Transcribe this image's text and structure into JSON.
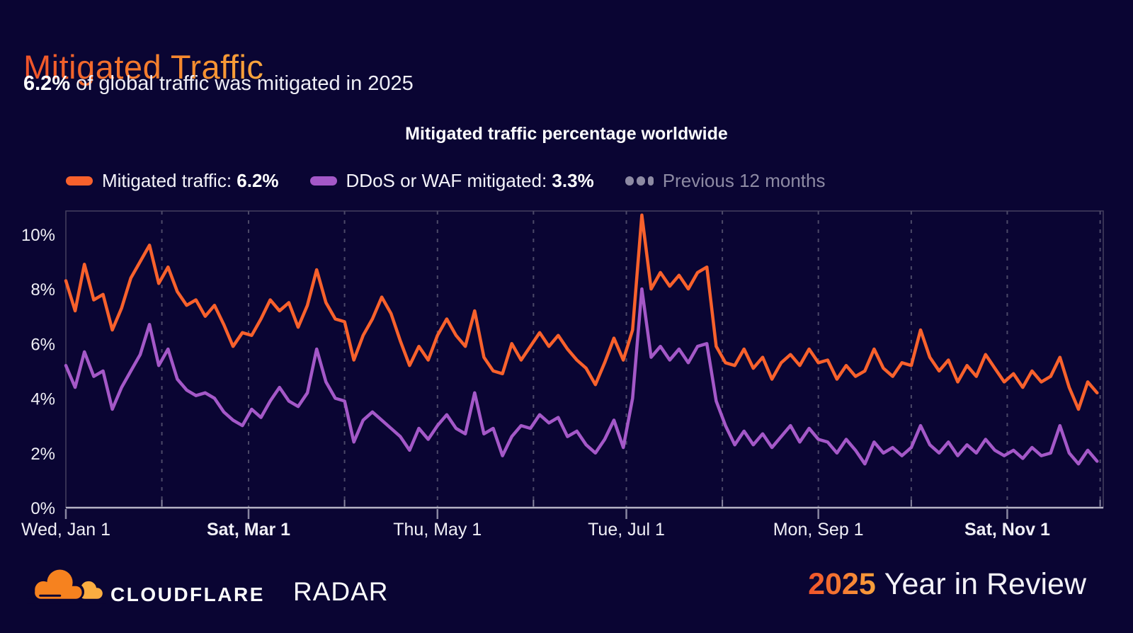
{
  "page": {
    "background": "#0a0533"
  },
  "header": {
    "title": "Mitigated Traffic",
    "subtitle_value": "6.2%",
    "subtitle_rest": " of global traffic was mitigated in 2025"
  },
  "chart": {
    "title": "Mitigated traffic percentage worldwide",
    "legend": [
      {
        "label": "Mitigated traffic: ",
        "value": "6.2%",
        "color": "#f8612c",
        "muted": false
      },
      {
        "label": "DDoS or WAF mitigated: ",
        "value": "3.3%",
        "color": "#a458c8",
        "muted": false
      },
      {
        "label": "Previous 12 months",
        "value": "",
        "color": "#8d8aa3",
        "muted": true
      }
    ],
    "colors": {
      "gridline": "#4c4968",
      "plot_border": "#44405f",
      "axis_line": "#b6b4c6",
      "tick": "#8886a0",
      "label": "#f0eff6"
    }
  },
  "chart_data": {
    "type": "line",
    "title": "Mitigated traffic percentage worldwide",
    "x_unit": "day of 2025",
    "x_start_day": 0,
    "x_step_days": 3,
    "x_domain_days": [
      0,
      335
    ],
    "ylim": [
      0,
      10.85
    ],
    "ytick_values": [
      0,
      2,
      4,
      6,
      8,
      10
    ],
    "ytick_labels": [
      "0%",
      "2%",
      "4%",
      "6%",
      "8%",
      "10%"
    ],
    "x_axis_labels": [
      {
        "label": "Wed, Jan 1",
        "day": 0,
        "bold": false
      },
      {
        "label": "Sat, Mar 1",
        "day": 59,
        "bold": true
      },
      {
        "label": "Thu, May 1",
        "day": 120,
        "bold": false
      },
      {
        "label": "Tue, Jul 1",
        "day": 181,
        "bold": false
      },
      {
        "label": "Mon, Sep 1",
        "day": 243,
        "bold": false
      },
      {
        "label": "Sat, Nov 1",
        "day": 304,
        "bold": true
      }
    ],
    "month_gridline_days": [
      31,
      59,
      90,
      120,
      151,
      181,
      212,
      243,
      273,
      304,
      334
    ],
    "minor_tick_days": [
      31,
      90,
      151,
      212,
      273,
      334
    ],
    "grid": "vertical-dashed",
    "legend_position": "top-left",
    "series": [
      {
        "name": "DDoS or WAF mitigated",
        "current_value": "3.3%",
        "color": "#a458c8",
        "unit": "%",
        "values": [
          5.2,
          4.4,
          5.7,
          4.8,
          5.0,
          3.6,
          4.4,
          5.0,
          5.6,
          6.7,
          5.2,
          5.8,
          4.7,
          4.3,
          4.1,
          4.2,
          4.0,
          3.5,
          3.2,
          3.0,
          3.6,
          3.3,
          3.9,
          4.4,
          3.9,
          3.7,
          4.2,
          5.8,
          4.6,
          4.0,
          3.9,
          2.4,
          3.2,
          3.5,
          3.2,
          2.9,
          2.6,
          2.1,
          2.9,
          2.5,
          3.0,
          3.4,
          2.9,
          2.7,
          4.2,
          2.7,
          2.9,
          1.9,
          2.6,
          3.0,
          2.9,
          3.4,
          3.1,
          3.3,
          2.6,
          2.8,
          2.3,
          2.0,
          2.5,
          3.2,
          2.2,
          4.0,
          8.0,
          5.5,
          5.9,
          5.4,
          5.8,
          5.3,
          5.9,
          6.0,
          3.9,
          3.0,
          2.3,
          2.8,
          2.3,
          2.7,
          2.2,
          2.6,
          3.0,
          2.4,
          2.9,
          2.5,
          2.4,
          2.0,
          2.5,
          2.1,
          1.6,
          2.4,
          2.0,
          2.2,
          1.9,
          2.2,
          3.0,
          2.3,
          2.0,
          2.4,
          1.9,
          2.3,
          2.0,
          2.5,
          2.1,
          1.9,
          2.1,
          1.8,
          2.2,
          1.9,
          2.0,
          3.0,
          2.0,
          1.6,
          2.1,
          1.7
        ]
      },
      {
        "name": "Mitigated traffic",
        "current_value": "6.2%",
        "color": "#f8612c",
        "unit": "%",
        "values": [
          8.3,
          7.2,
          8.9,
          7.6,
          7.8,
          6.5,
          7.3,
          8.4,
          9.0,
          9.6,
          8.2,
          8.8,
          7.9,
          7.4,
          7.6,
          7.0,
          7.4,
          6.7,
          5.9,
          6.4,
          6.3,
          6.9,
          7.6,
          7.2,
          7.5,
          6.6,
          7.4,
          8.7,
          7.5,
          6.9,
          6.8,
          5.4,
          6.3,
          6.9,
          7.7,
          7.1,
          6.1,
          5.2,
          5.9,
          5.4,
          6.3,
          6.9,
          6.3,
          5.9,
          7.2,
          5.5,
          5.0,
          4.9,
          6.0,
          5.4,
          5.9,
          6.4,
          5.9,
          6.3,
          5.8,
          5.4,
          5.1,
          4.5,
          5.3,
          6.2,
          5.4,
          6.5,
          10.7,
          8.0,
          8.6,
          8.1,
          8.5,
          8.0,
          8.6,
          8.8,
          5.9,
          5.3,
          5.2,
          5.8,
          5.1,
          5.5,
          4.7,
          5.3,
          5.6,
          5.2,
          5.8,
          5.3,
          5.4,
          4.7,
          5.2,
          4.8,
          5.0,
          5.8,
          5.1,
          4.8,
          5.3,
          5.2,
          6.5,
          5.5,
          5.0,
          5.4,
          4.6,
          5.2,
          4.8,
          5.6,
          5.1,
          4.6,
          4.9,
          4.4,
          5.0,
          4.6,
          4.8,
          5.5,
          4.4,
          3.6,
          4.6,
          4.2
        ]
      }
    ],
    "hidden_series": [
      "Previous 12 months"
    ]
  },
  "footer": {
    "brand": "CLOUDFLARE",
    "product": "RADAR",
    "year": "2025",
    "campaign": "Year in Review",
    "logo": {
      "cloud_main": "#f6821f",
      "cloud_light": "#fbad41"
    }
  }
}
